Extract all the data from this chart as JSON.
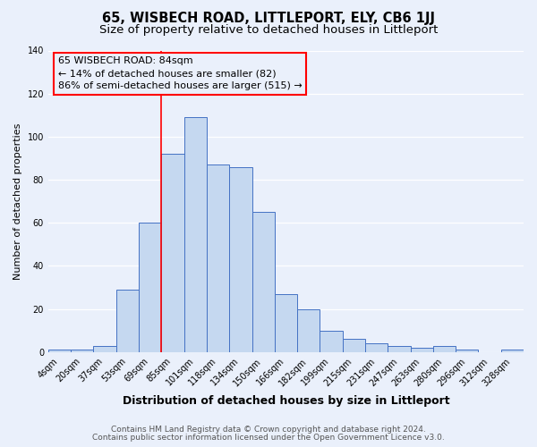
{
  "title": "65, WISBECH ROAD, LITTLEPORT, ELY, CB6 1JJ",
  "subtitle": "Size of property relative to detached houses in Littleport",
  "xlabel": "Distribution of detached houses by size in Littleport",
  "ylabel": "Number of detached properties",
  "categories": [
    "4sqm",
    "20sqm",
    "37sqm",
    "53sqm",
    "69sqm",
    "85sqm",
    "101sqm",
    "118sqm",
    "134sqm",
    "150sqm",
    "166sqm",
    "182sqm",
    "199sqm",
    "215sqm",
    "231sqm",
    "247sqm",
    "263sqm",
    "280sqm",
    "296sqm",
    "312sqm",
    "328sqm"
  ],
  "values": [
    1,
    1,
    3,
    29,
    60,
    92,
    109,
    87,
    86,
    65,
    27,
    20,
    10,
    6,
    4,
    3,
    2,
    3,
    1,
    0,
    1
  ],
  "bar_color": "#c5d8f0",
  "bar_edge_color": "#4472c4",
  "red_line_index": 5,
  "annotation_title": "65 WISBECH ROAD: 84sqm",
  "annotation_line1": "← 14% of detached houses are smaller (82)",
  "annotation_line2": "86% of semi-detached houses are larger (515) →",
  "ylim": [
    0,
    140
  ],
  "yticks": [
    0,
    20,
    40,
    60,
    80,
    100,
    120,
    140
  ],
  "footer1": "Contains HM Land Registry data © Crown copyright and database right 2024.",
  "footer2": "Contains public sector information licensed under the Open Government Licence v3.0.",
  "bg_color": "#eaf0fb",
  "grid_color": "#ffffff",
  "title_fontsize": 10.5,
  "subtitle_fontsize": 9.5,
  "xlabel_fontsize": 9,
  "ylabel_fontsize": 8,
  "tick_fontsize": 7,
  "footer_fontsize": 6.5,
  "ann_fontsize": 8
}
